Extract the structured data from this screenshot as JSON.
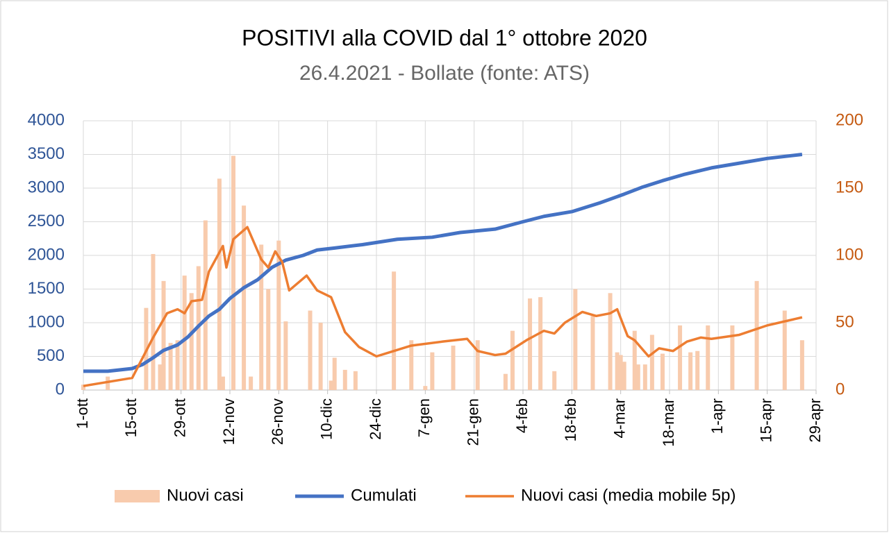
{
  "chart_data": {
    "type": "combo",
    "title": "POSITIVI alla COVID dal 1° ottobre  2020",
    "subtitle": "26.4.2021  - Bollate (fonte: ATS)",
    "xlim": [
      0,
      210
    ],
    "xticks": [
      {
        "value": 0,
        "label": "1-ott"
      },
      {
        "value": 14,
        "label": "15-ott"
      },
      {
        "value": 28,
        "label": "29-ott"
      },
      {
        "value": 42,
        "label": "12-nov"
      },
      {
        "value": 56,
        "label": "26-nov"
      },
      {
        "value": 70,
        "label": "10-dic"
      },
      {
        "value": 84,
        "label": "24-dic"
      },
      {
        "value": 98,
        "label": "7-gen"
      },
      {
        "value": 112,
        "label": "21-gen"
      },
      {
        "value": 126,
        "label": "4-feb"
      },
      {
        "value": 140,
        "label": "18-feb"
      },
      {
        "value": 154,
        "label": "4-mar"
      },
      {
        "value": 168,
        "label": "18-mar"
      },
      {
        "value": 182,
        "label": "1-apr"
      },
      {
        "value": 196,
        "label": "15-apr"
      },
      {
        "value": 210,
        "label": "29-apr"
      }
    ],
    "ylim": [
      0,
      4000
    ],
    "yticks": [
      0,
      500,
      1000,
      1500,
      2000,
      2500,
      3000,
      3500,
      4000
    ],
    "y2lim": [
      0,
      200
    ],
    "y2ticks": [
      0,
      50,
      100,
      150,
      200
    ],
    "grid": true,
    "legend": "bottom",
    "series": [
      {
        "name": "Nuovi casi",
        "type": "bar",
        "axis": "y2",
        "color": "#f8cbad",
        "x": [
          0,
          7,
          18,
          20,
          22,
          23,
          25,
          27,
          29,
          31,
          33,
          35,
          39,
          40,
          43,
          46,
          48,
          51,
          53,
          56,
          58,
          65,
          68,
          71,
          72,
          75,
          78,
          89,
          94,
          98,
          100,
          106,
          113,
          121,
          123,
          128,
          131,
          135,
          141,
          146,
          151,
          153,
          154,
          155,
          158,
          159,
          161,
          163,
          166,
          171,
          174,
          176,
          179,
          186,
          193,
          201,
          206
        ],
        "values": [
          4,
          10,
          61,
          101,
          19,
          81,
          35,
          37,
          85,
          72,
          92,
          126,
          157,
          10,
          174,
          137,
          10,
          108,
          75,
          111,
          51,
          59,
          50,
          7,
          24,
          15,
          14,
          88,
          37,
          3,
          28,
          33,
          37,
          12,
          44,
          68,
          69,
          14,
          75,
          55,
          72,
          28,
          26,
          21,
          44,
          19,
          19,
          41,
          27,
          48,
          28,
          29,
          48,
          48,
          81,
          59,
          37
        ]
      },
      {
        "name": "Cumulati",
        "type": "line",
        "color": "#4472c4",
        "x": [
          0,
          7,
          14,
          17,
          20,
          23,
          27,
          30,
          33,
          36,
          39,
          42,
          46,
          50,
          54,
          58,
          63,
          67,
          72,
          80,
          90,
          100,
          108,
          118,
          126,
          132,
          140,
          148,
          155,
          160,
          166,
          172,
          180,
          188,
          196,
          206
        ],
        "values": [
          280,
          280,
          320,
          380,
          480,
          590,
          670,
          790,
          950,
          1100,
          1200,
          1360,
          1520,
          1640,
          1820,
          1930,
          2000,
          2080,
          2110,
          2160,
          2240,
          2270,
          2340,
          2390,
          2500,
          2580,
          2650,
          2780,
          2910,
          3010,
          3110,
          3200,
          3300,
          3370,
          3440,
          3500
        ]
      },
      {
        "name": "Nuovi casi (media mobile 5p)",
        "type": "line",
        "axis": "y2",
        "color": "#ed7d31",
        "x": [
          0,
          14,
          16,
          20,
          24,
          27,
          29,
          31,
          34,
          36,
          40,
          41,
          43,
          47,
          51,
          53,
          55,
          57,
          59,
          64,
          67,
          71,
          75,
          79,
          84,
          94,
          103,
          110,
          113,
          118,
          121,
          127,
          132,
          135,
          138,
          143,
          147,
          151,
          153,
          156,
          158,
          162,
          165,
          169,
          173,
          177,
          180,
          188,
          196,
          206
        ],
        "values": [
          3,
          9,
          19,
          39,
          57,
          60,
          57,
          66,
          67,
          88,
          107,
          91,
          112,
          121,
          97,
          91,
          103,
          95,
          74,
          85,
          74,
          69,
          43,
          32,
          25,
          33,
          36,
          38,
          29,
          26,
          27,
          37,
          44,
          42,
          50,
          58,
          55,
          57,
          60,
          40,
          37,
          25,
          31,
          29,
          36,
          39,
          38,
          41,
          48,
          54
        ]
      }
    ]
  }
}
